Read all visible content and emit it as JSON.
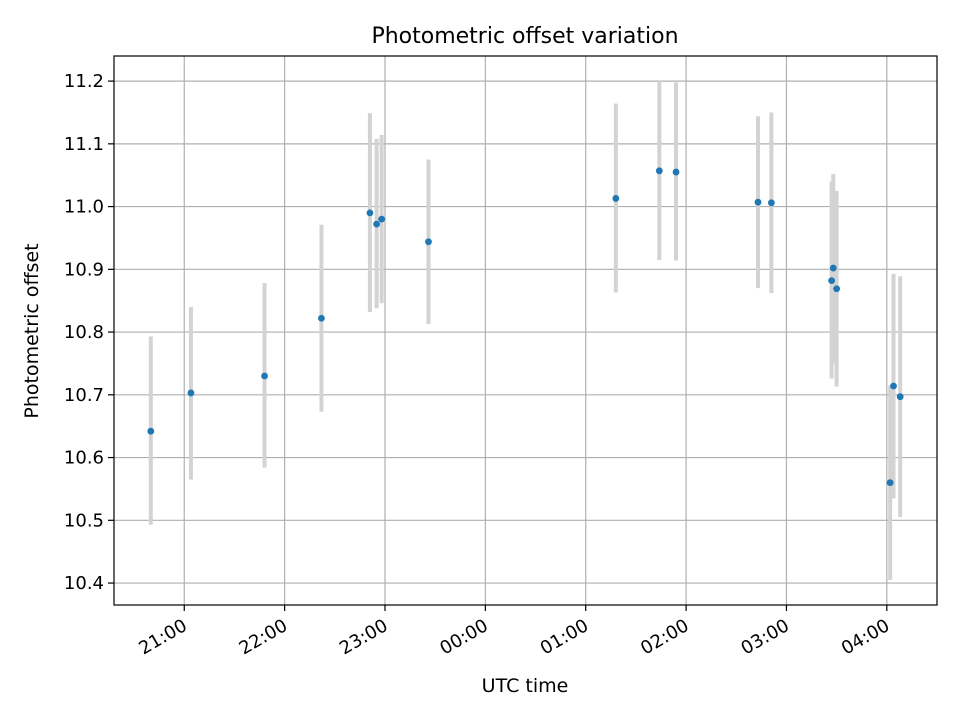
{
  "chart_data": {
    "type": "scatter",
    "title": "Photometric offset variation",
    "xlabel": "UTC time",
    "ylabel": "Photometric offset",
    "grid": true,
    "xlim": [
      "20:18",
      "04:30"
    ],
    "ylim": [
      10.365,
      11.24
    ],
    "x_ticks": [
      "21:00",
      "22:00",
      "23:00",
      "00:00",
      "01:00",
      "02:00",
      "03:00",
      "04:00"
    ],
    "y_ticks": [
      "10.4",
      "10.5",
      "10.6",
      "10.7",
      "10.8",
      "10.9",
      "11.0",
      "11.1",
      "11.2"
    ],
    "point_color": "#1f77b4",
    "errorbar_color": "#d3d3d3",
    "points": [
      {
        "x": "20:40",
        "y": 10.642,
        "y_low": 10.493,
        "y_high": 10.793
      },
      {
        "x": "21:04",
        "y": 10.703,
        "y_low": 10.565,
        "y_high": 10.84
      },
      {
        "x": "21:48",
        "y": 10.73,
        "y_low": 10.584,
        "y_high": 10.878
      },
      {
        "x": "22:22",
        "y": 10.822,
        "y_low": 10.673,
        "y_high": 10.971
      },
      {
        "x": "22:51",
        "y": 10.99,
        "y_low": 10.832,
        "y_high": 11.149
      },
      {
        "x": "22:55",
        "y": 10.972,
        "y_low": 10.838,
        "y_high": 11.108
      },
      {
        "x": "22:58",
        "y": 10.98,
        "y_low": 10.846,
        "y_high": 11.114
      },
      {
        "x": "23:26",
        "y": 10.944,
        "y_low": 10.813,
        "y_high": 11.075
      },
      {
        "x": "01:18",
        "y": 11.013,
        "y_low": 10.863,
        "y_high": 11.164
      },
      {
        "x": "01:44",
        "y": 11.057,
        "y_low": 10.915,
        "y_high": 11.2
      },
      {
        "x": "01:54",
        "y": 11.055,
        "y_low": 10.914,
        "y_high": 11.198
      },
      {
        "x": "02:43",
        "y": 11.007,
        "y_low": 10.87,
        "y_high": 11.144
      },
      {
        "x": "02:51",
        "y": 11.006,
        "y_low": 10.862,
        "y_high": 11.15
      },
      {
        "x": "03:27",
        "y": 10.882,
        "y_low": 10.726,
        "y_high": 11.04
      },
      {
        "x": "03:28",
        "y": 10.902,
        "y_low": 10.75,
        "y_high": 11.052
      },
      {
        "x": "03:30",
        "y": 10.869,
        "y_low": 10.713,
        "y_high": 11.025
      },
      {
        "x": "04:02",
        "y": 10.56,
        "y_low": 10.405,
        "y_high": 10.715
      },
      {
        "x": "04:04",
        "y": 10.714,
        "y_low": 10.535,
        "y_high": 10.893
      },
      {
        "x": "04:08",
        "y": 10.697,
        "y_low": 10.505,
        "y_high": 10.889
      }
    ]
  }
}
